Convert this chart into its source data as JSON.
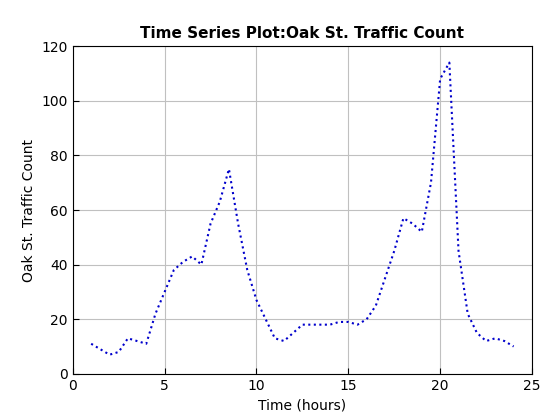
{
  "title": "Time Series Plot:Oak St. Traffic Count",
  "xlabel": "Time (hours)",
  "ylabel": "Oak St. Traffic Count",
  "xlim": [
    0,
    25
  ],
  "ylim": [
    0,
    120
  ],
  "xticks": [
    0,
    5,
    10,
    15,
    20,
    25
  ],
  "yticks": [
    0,
    20,
    40,
    60,
    80,
    100,
    120
  ],
  "line_color": "#0000CC",
  "linestyle": "dotted",
  "linewidth": 1.5,
  "x": [
    1,
    1.5,
    2,
    2.5,
    3,
    3.5,
    4,
    4.5,
    5,
    5.5,
    6,
    6.5,
    7,
    7.5,
    8,
    8.5,
    9,
    9.5,
    10,
    10.5,
    11,
    11.5,
    12,
    12.5,
    13,
    13.5,
    14,
    14.5,
    15,
    15.5,
    16,
    16.5,
    17,
    17.5,
    18,
    18.5,
    19,
    19.5,
    20,
    20.5,
    21,
    21.5,
    22,
    22.5,
    23,
    23.5,
    24
  ],
  "y": [
    11,
    9,
    7,
    8,
    13,
    12,
    11,
    22,
    30,
    38,
    41,
    43,
    40,
    55,
    63,
    75,
    55,
    38,
    27,
    20,
    13,
    12,
    15,
    18,
    18,
    18,
    18,
    19,
    19,
    18,
    20,
    25,
    35,
    45,
    57,
    55,
    52,
    70,
    108,
    114,
    45,
    22,
    15,
    12,
    13,
    12,
    10
  ],
  "grid": true,
  "grid_color": "#c0c0c0",
  "background_color": "#ffffff",
  "title_fontsize": 11,
  "label_fontsize": 10,
  "tick_fontsize": 10,
  "font_family": "DejaVu Sans"
}
